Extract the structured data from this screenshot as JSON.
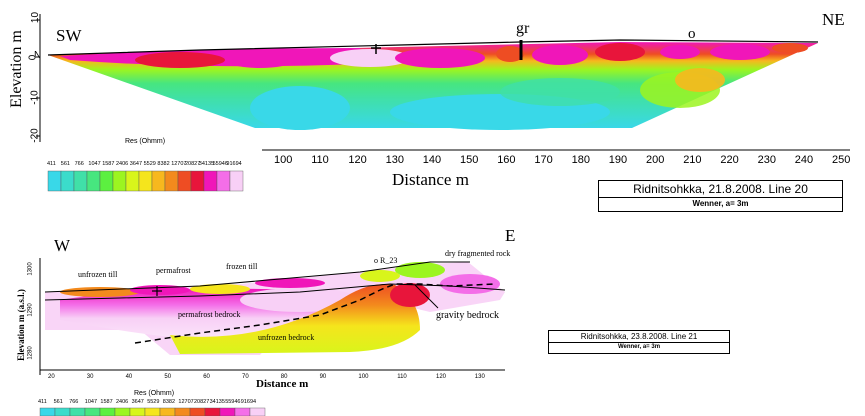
{
  "profile1": {
    "dir_left": "SW",
    "dir_right": "NE",
    "marker_gr": "gr",
    "marker_o": "o",
    "ylabel": "Elevation m",
    "yticks": [
      "10",
      "0",
      "-10",
      "-20"
    ],
    "zero_n_label": "N",
    "xlabel": "Distance m",
    "xticks": [
      "100",
      "110",
      "120",
      "130",
      "140",
      "150",
      "160",
      "170",
      "180",
      "190",
      "200",
      "210",
      "220",
      "230",
      "240",
      "250"
    ],
    "legend_title": "Res (Ohmm)",
    "legend_values": [
      "411",
      "561",
      "766",
      "1047",
      "1587",
      "2406",
      "3647",
      "5529",
      "8382",
      "12707",
      "20827",
      "34135",
      "55946",
      "91694"
    ],
    "caption": "Ridnitsohkka, 21.8.2008. Line 20",
    "caption_sub": "Wenner, a= 3m"
  },
  "profile2": {
    "dir_left": "W",
    "dir_right": "E",
    "marker_r23": "o R_23",
    "ylabel": "Elevation m (a.s.l.)",
    "yticks": [
      "1300",
      "1290",
      "1280"
    ],
    "xlabel": "Distance m",
    "xticks": [
      "20",
      "30",
      "40",
      "50",
      "60",
      "70",
      "80",
      "90",
      "100",
      "110",
      "120",
      "130"
    ],
    "annotations": {
      "unfrozen_till": "unfrozen till",
      "permafrost": "permafrost",
      "frozen_till": "frozen till",
      "dry_fragmented_rock": "dry fragmented rock",
      "permafrost_bedrock": "permafrost bedrock",
      "gravity_bedrock": "gravity bedrock",
      "unfrozen_bedrock": "unfrozen bedrock"
    },
    "legend_title": "Res (Ohmm)",
    "legend_values": [
      "411",
      "561",
      "766",
      "1047",
      "1587",
      "2406",
      "3647",
      "5529",
      "8382",
      "12707",
      "20827",
      "34135",
      "55946",
      "91694"
    ],
    "caption": "Ridnitsohkka, 23.8.2008. Line 21",
    "caption_sub": "Wenner, a= 3m"
  },
  "colors": {
    "scale": [
      "#39d8e8",
      "#3bdccb",
      "#40e0a8",
      "#47e67f",
      "#5cf040",
      "#9cf520",
      "#d8f51b",
      "#f5e51c",
      "#f7b81e",
      "#f38a1d",
      "#ee4d23",
      "#e8153b",
      "#f016b9",
      "#f46ee8",
      "#f8d0f6"
    ]
  }
}
